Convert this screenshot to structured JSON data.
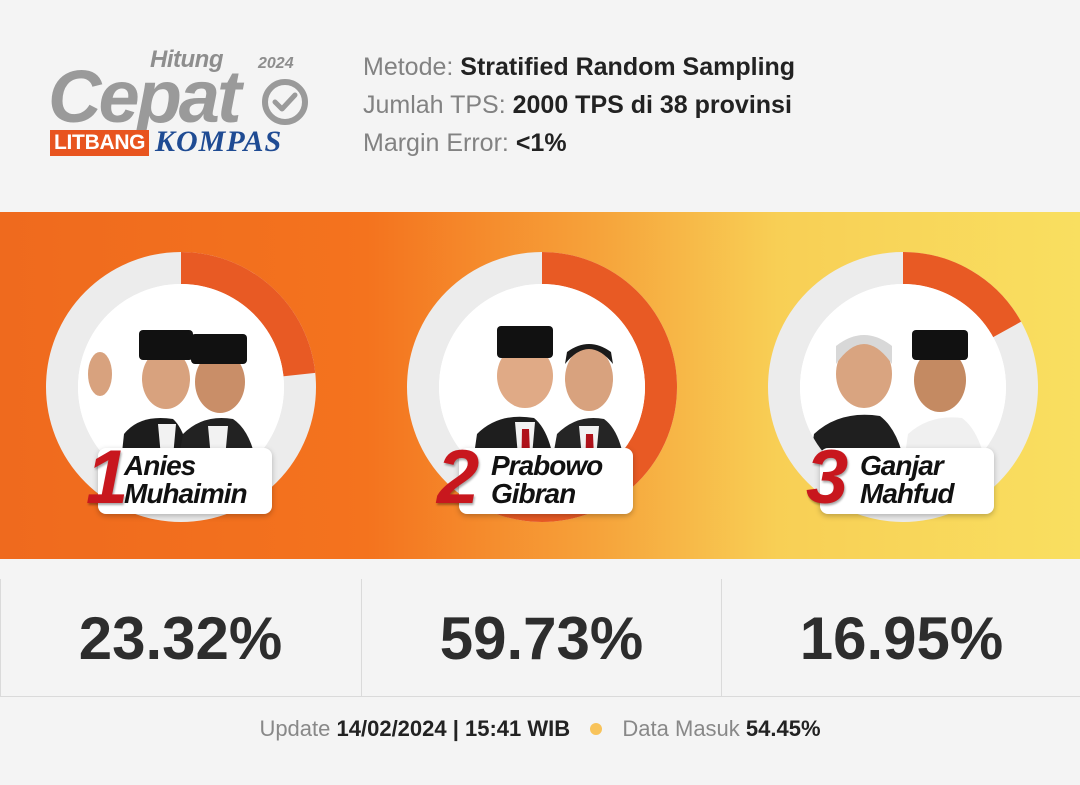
{
  "logo": {
    "hitung": "Hitung",
    "year": "2024",
    "cepat": "Cepat",
    "litbang": "LITBANG",
    "kompas": "KOMPAS"
  },
  "meta": {
    "method_label": "Metode:",
    "method_value": "Stratified Random Sampling",
    "tps_label": "Jumlah TPS:",
    "tps_value": "2000 TPS di 38 provinsi",
    "margin_label": "Margin Error:",
    "margin_value": "<1%"
  },
  "candidates": [
    {
      "number": "1",
      "name_line1": "Anies",
      "name_line2": "Muhaimin",
      "percent_text": "23.32%",
      "share": 0.2332
    },
    {
      "number": "2",
      "name_line1": "Prabowo",
      "name_line2": "Gibran",
      "percent_text": "59.73%",
      "share": 0.5973
    },
    {
      "number": "3",
      "name_line1": "Ganjar",
      "name_line2": "Mahfud",
      "percent_text": "16.95%",
      "share": 0.1695
    }
  ],
  "footer": {
    "update_label": "Update",
    "update_value": "14/02/2024 | 15:41 WIB",
    "data_label": "Data Masuk",
    "data_value": "54.45%"
  },
  "colors": {
    "accent": "#e8541f",
    "ring_track": "#ececec",
    "ring_fill": "#e85a24",
    "number_red": "#c8171e",
    "kompas_blue": "#1f4b93"
  }
}
